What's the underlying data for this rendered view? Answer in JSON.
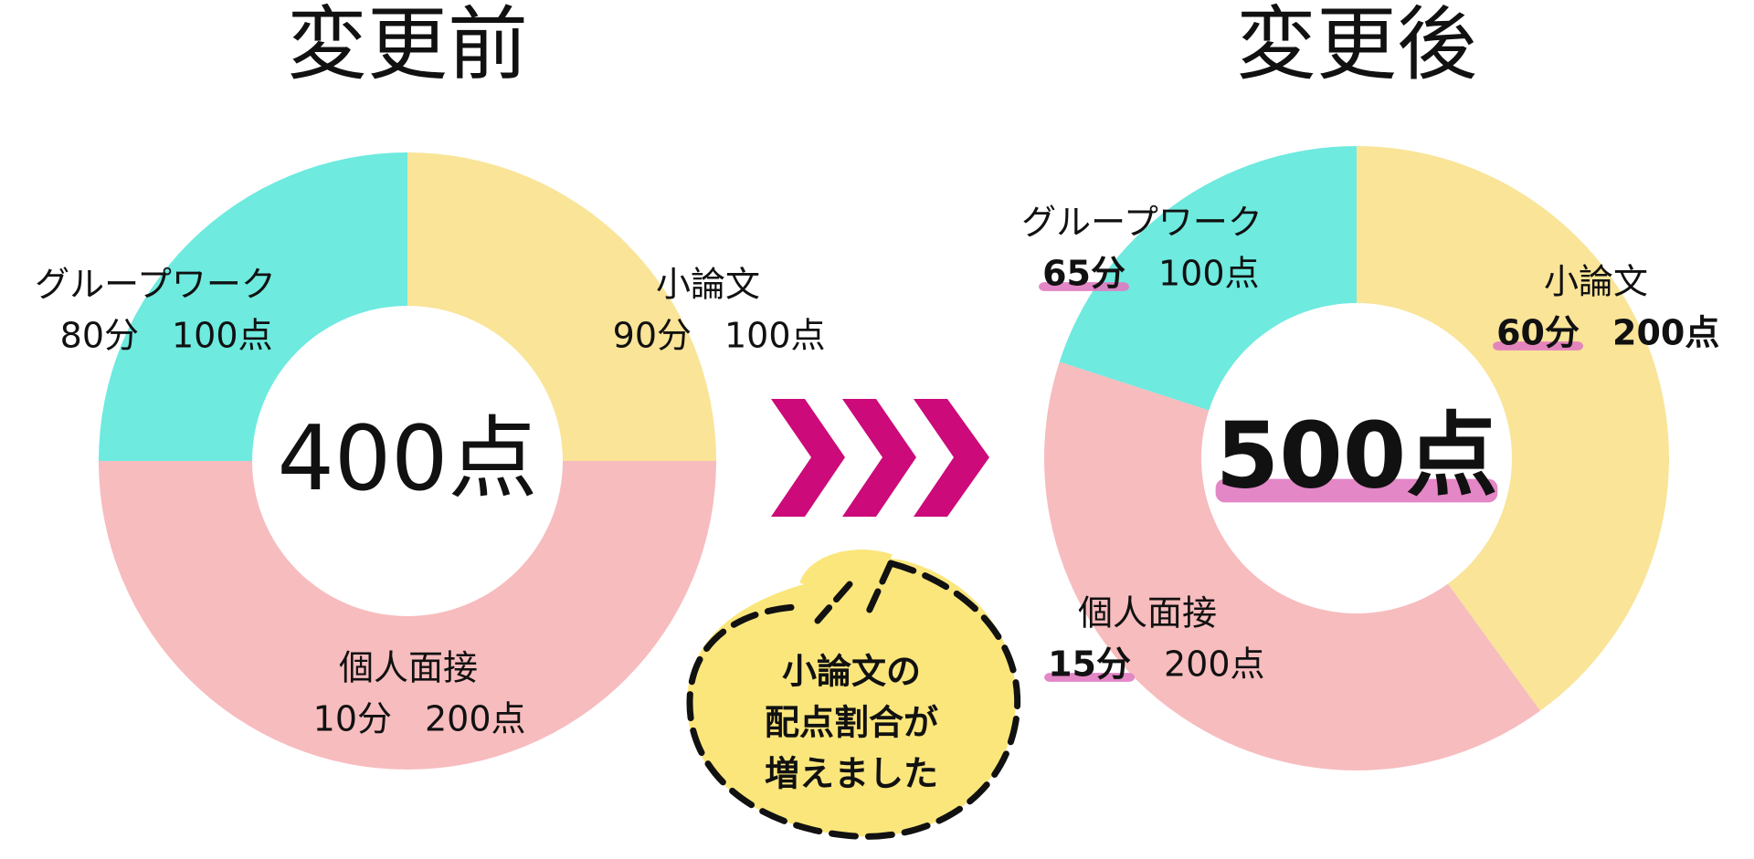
{
  "chart_data": [
    {
      "type": "donut",
      "title": "変更前",
      "center_label": "400点",
      "categories": [
        "小論文",
        "個人面接",
        "グループワーク"
      ],
      "values": [
        100,
        200,
        100
      ],
      "value_labels": [
        "100点",
        "200点",
        "100点"
      ],
      "durations": [
        "90分",
        "10分",
        "80分"
      ],
      "colors": [
        "#f9e498",
        "#f7bcbe",
        "#6eeadf"
      ]
    },
    {
      "type": "donut",
      "title": "変更後",
      "center_label": "500点",
      "categories": [
        "小論文",
        "個人面接",
        "グループワーク"
      ],
      "values": [
        200,
        200,
        100
      ],
      "value_labels": [
        "200点",
        "200点",
        "100点"
      ],
      "durations": [
        "60分",
        "15分",
        "65分"
      ],
      "colors": [
        "#f9e498",
        "#f7bcbe",
        "#6eeadf"
      ],
      "highlight_color": "#e07ac0"
    }
  ],
  "callout": {
    "lines": [
      "小論文の",
      "配点割合が",
      "増えました"
    ]
  }
}
